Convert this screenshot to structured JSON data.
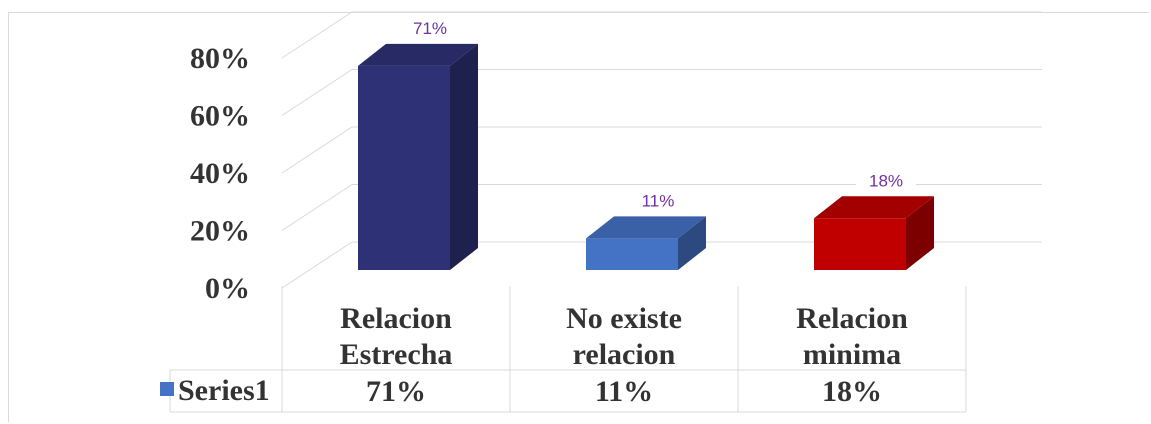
{
  "chart_data": {
    "type": "bar",
    "three_d": true,
    "categories": [
      [
        "Relacion",
        "Estrecha"
      ],
      [
        "No existe",
        "relacion"
      ],
      [
        "Relacion",
        "minima"
      ]
    ],
    "series": [
      {
        "name": "Series1",
        "values": [
          71,
          11,
          18
        ],
        "colors": [
          "#2e3176",
          "#4472c4",
          "#c00000"
        ],
        "value_labels": [
          "71%",
          "11%",
          "18%"
        ]
      }
    ],
    "ylim": [
      0,
      80
    ],
    "yticks": [
      0,
      20,
      40,
      60,
      80
    ],
    "ytick_labels": [
      "0%",
      "20%",
      "40%",
      "60%",
      "80%"
    ],
    "grid": true,
    "data_table": true,
    "legend_key_color": "#4472c4",
    "data_label_color": "#7030a0",
    "data_label_bg": "#ffffff"
  }
}
